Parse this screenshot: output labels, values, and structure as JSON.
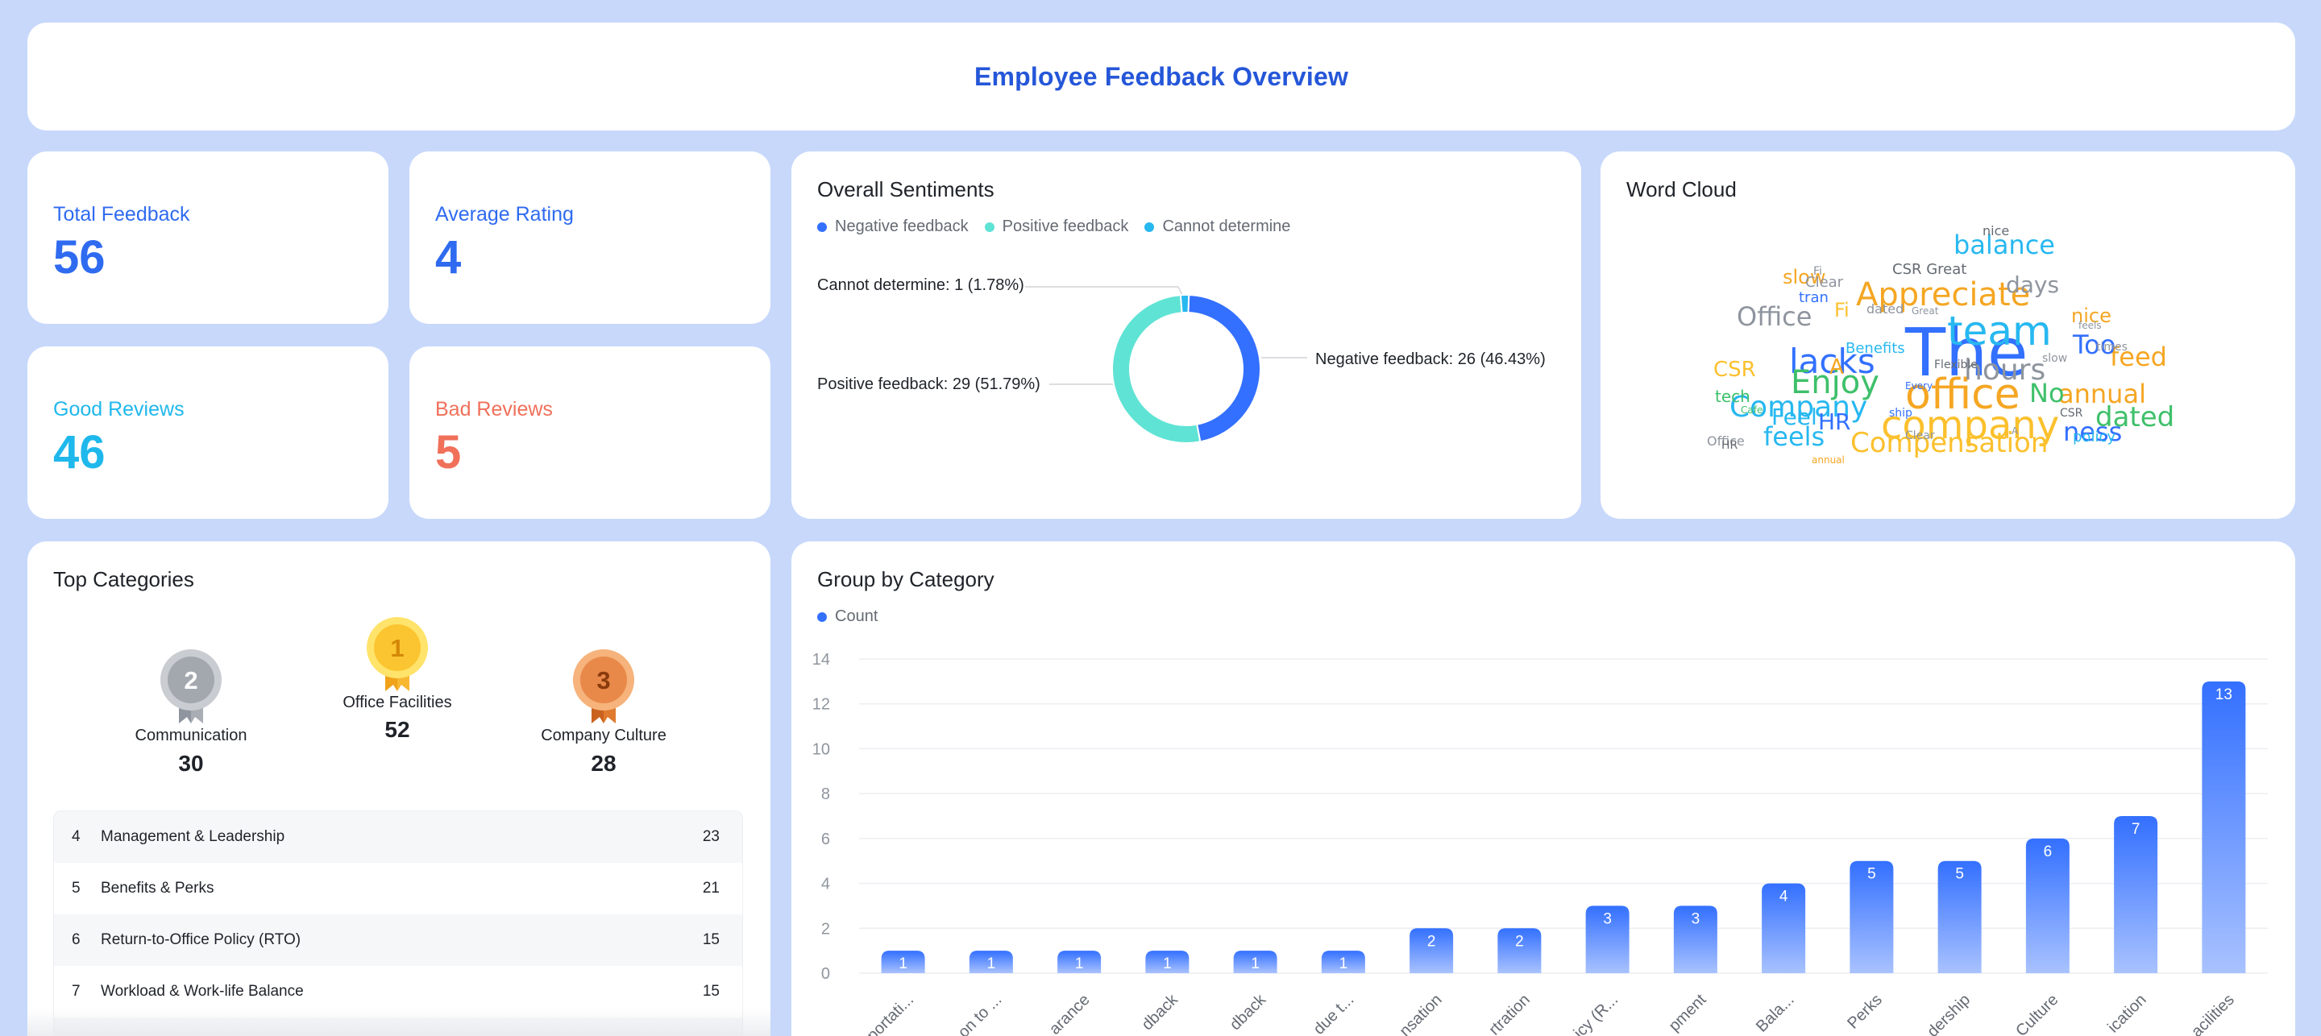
{
  "header": {
    "title": "Employee Feedback Overview"
  },
  "stats": [
    {
      "label": "Total Feedback",
      "value": "56",
      "color": "#2f6bf0"
    },
    {
      "label": "Average Rating",
      "value": "4",
      "color": "#2f6bf0"
    },
    {
      "label": "Good Reviews",
      "value": "46",
      "color": "#1fb8ec"
    },
    {
      "label": "Bad Reviews",
      "value": "5",
      "color": "#f0705a"
    }
  ],
  "sentiments": {
    "title": "Overall Sentiments",
    "legend": [
      {
        "label": "Negative feedback",
        "color": "#3370ff"
      },
      {
        "label": "Positive feedback",
        "color": "#5fe3d4"
      },
      {
        "label": "Cannot determine",
        "color": "#27b8f0"
      }
    ],
    "labels": {
      "cannot": "Cannot determine: 1 (1.78%)",
      "positive": "Positive feedback: 29 (51.79%)",
      "negative": "Negative feedback: 26 (46.43%)"
    }
  },
  "word_cloud": {
    "title": "Word Cloud",
    "words": [
      {
        "t": "The",
        "c": "#3370ff"
      },
      {
        "t": "office",
        "c": "#f5a623"
      },
      {
        "t": "company",
        "c": "#fbc02d"
      },
      {
        "t": "team",
        "c": "#27b8f0"
      },
      {
        "t": "Company",
        "c": "#27b8f0"
      },
      {
        "t": "Compensation",
        "c": "#fbc02d"
      },
      {
        "t": "Appreciate",
        "c": "#f5a623"
      },
      {
        "t": "lacks",
        "c": "#3370ff"
      },
      {
        "t": "Enjoy",
        "c": "#3ec06a"
      },
      {
        "t": "hours",
        "c": "#8f959e"
      },
      {
        "t": "balance",
        "c": "#27b8f0"
      },
      {
        "t": "annual",
        "c": "#f5a623"
      },
      {
        "t": "dated",
        "c": "#3ec06a"
      },
      {
        "t": "feels",
        "c": "#27b8f0"
      },
      {
        "t": "ness",
        "c": "#3370ff"
      },
      {
        "t": "Office",
        "c": "#8f959e"
      },
      {
        "t": "days",
        "c": "#8f959e"
      },
      {
        "t": "feed",
        "c": "#f5a623"
      },
      {
        "t": "Too",
        "c": "#3370ff"
      },
      {
        "t": "No",
        "c": "#3ec06a"
      },
      {
        "t": "Feel",
        "c": "#27b8f0"
      },
      {
        "t": "HR",
        "c": "#3370ff"
      },
      {
        "t": "slow",
        "c": "#f5a623"
      },
      {
        "t": "nice",
        "c": "#f5a623"
      },
      {
        "t": "CSR",
        "c": "#fbc02d"
      },
      {
        "t": "Fi",
        "c": "#fbc02d"
      },
      {
        "t": "A",
        "c": "#f5a623"
      },
      {
        "t": "tech",
        "c": "#3ec06a"
      },
      {
        "t": "CSR Great",
        "c": "#646a73"
      },
      {
        "t": "Clear",
        "c": "#8f959e"
      },
      {
        "t": "tran",
        "c": "#3370ff"
      },
      {
        "t": "policy",
        "c": "#27b8f0"
      },
      {
        "t": "Benefits",
        "c": "#27b8f0"
      },
      {
        "t": "Office",
        "c": "#8f959e"
      },
      {
        "t": "nice",
        "c": "#646a73"
      },
      {
        "t": "Fi",
        "c": "#8f959e"
      },
      {
        "t": "dated",
        "c": "#8f959e"
      },
      {
        "t": "times",
        "c": "#8f959e"
      },
      {
        "t": "CSR",
        "c": "#646a73"
      },
      {
        "t": "Flexible",
        "c": "#646a73"
      },
      {
        "t": "HR",
        "c": "#646a73"
      },
      {
        "t": "ship",
        "c": "#3370ff"
      },
      {
        "t": "Clear",
        "c": "#8f959e"
      },
      {
        "t": "slow",
        "c": "#8f959e"
      },
      {
        "t": "feels",
        "c": "#8f959e"
      },
      {
        "t": "Cafe",
        "c": "#3ec06a"
      },
      {
        "t": "annual",
        "c": "#f5a623"
      },
      {
        "t": "Great",
        "c": "#8f959e"
      },
      {
        "t": "A",
        "c": "#8f959e"
      },
      {
        "t": "Every",
        "c": "#3370ff"
      }
    ]
  },
  "top_categories": {
    "title": "Top Categories",
    "podium": [
      {
        "rank": "2",
        "name": "Communication",
        "value": "30"
      },
      {
        "rank": "1",
        "name": "Office Facilities",
        "value": "52"
      },
      {
        "rank": "3",
        "name": "Company Culture",
        "value": "28"
      }
    ],
    "rows": [
      {
        "rank": "4",
        "name": "Management & Leadership",
        "count": "23"
      },
      {
        "rank": "5",
        "name": "Benefits & Perks",
        "count": "21"
      },
      {
        "rank": "6",
        "name": "Return-to-Office Policy (RTO)",
        "count": "15"
      },
      {
        "rank": "7",
        "name": "Workload & Work-life Balance",
        "count": "15"
      }
    ]
  },
  "group_by_category": {
    "title": "Group by Category",
    "legend": "Count"
  },
  "chart_data": [
    {
      "type": "pie",
      "title": "Overall Sentiments",
      "categories": [
        "Negative feedback",
        "Positive feedback",
        "Cannot determine"
      ],
      "values": [
        26,
        29,
        1
      ],
      "percentages": [
        46.43,
        51.79,
        1.78
      ],
      "colors": [
        "#3370ff",
        "#5fe3d4",
        "#27b8f0"
      ],
      "donut": true,
      "legend": "top-left"
    },
    {
      "type": "bar",
      "title": "Group by Category",
      "series": [
        {
          "name": "Count",
          "values": [
            1,
            1,
            1,
            1,
            1,
            1,
            2,
            2,
            3,
            3,
            4,
            5,
            5,
            6,
            7,
            13
          ]
        }
      ],
      "tick_labels": [
        "...portati...",
        "...on to ...",
        "...arance",
        "...dback",
        "...dback",
        "...due t...",
        "...nsation",
        "...rtration",
        "...icy (R...",
        "...pment",
        "... Bala...",
        "... Perks",
        "...dership",
        "...Culture",
        "...ication",
        "...acilities"
      ],
      "ylim": [
        0,
        14
      ],
      "yticks": [
        0,
        2,
        4,
        6,
        8,
        10,
        12,
        14
      ],
      "grid": true,
      "legend": "top-left",
      "color": "#3370ff"
    }
  ]
}
